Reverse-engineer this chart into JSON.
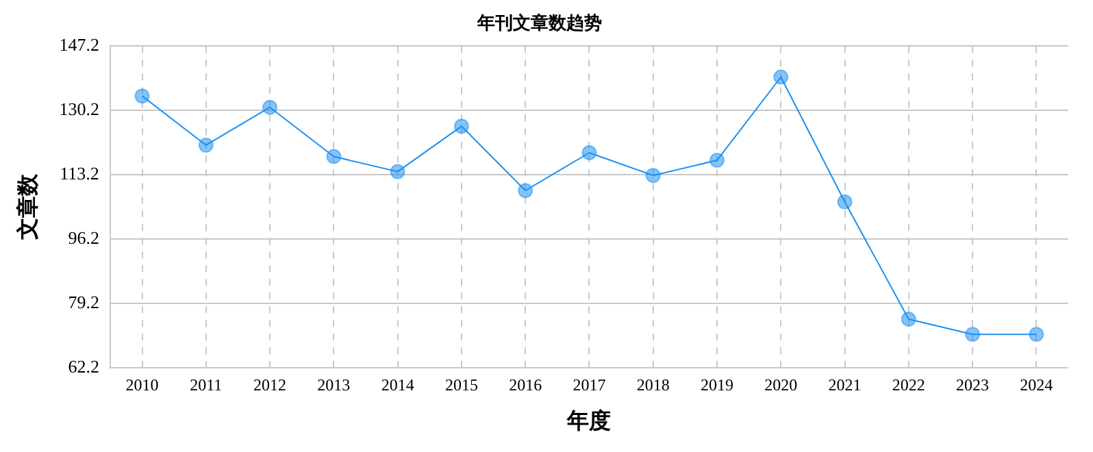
{
  "chart_data": {
    "type": "line",
    "title": "年刊文章数趋势",
    "xlabel": "年度",
    "ylabel": "文章数",
    "categories": [
      "2010",
      "2011",
      "2012",
      "2013",
      "2014",
      "2015",
      "2016",
      "2017",
      "2018",
      "2019",
      "2020",
      "2021",
      "2022",
      "2023",
      "2024"
    ],
    "series": [
      {
        "color": "#1b8ff0",
        "values": [
          134,
          121,
          131,
          118,
          114,
          126,
          109,
          119,
          113,
          117,
          139,
          106,
          75,
          71,
          71
        ]
      }
    ],
    "ylim": [
      62.2,
      147.2
    ],
    "yticks": [
      62.2,
      79.2,
      96.2,
      113.2,
      130.2,
      147.2
    ],
    "grid": true,
    "marker": "circle",
    "line_style": "solid",
    "legend": false
  }
}
